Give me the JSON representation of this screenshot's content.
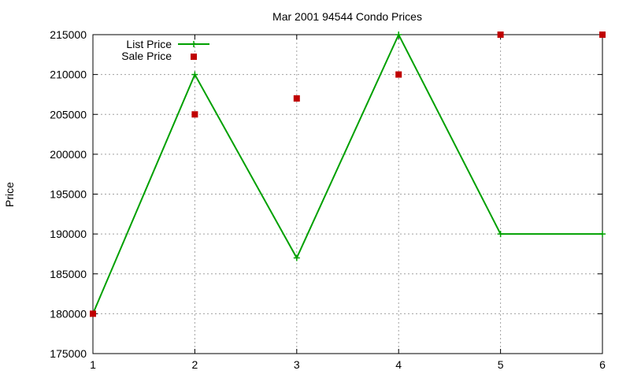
{
  "chart_data": {
    "type": "line",
    "title": "Mar 2001 94544 Condo Prices",
    "xlabel": "",
    "ylabel": "Price",
    "x": [
      1,
      2,
      3,
      4,
      5,
      6
    ],
    "xlim": [
      1,
      6
    ],
    "ylim": [
      175000,
      215000
    ],
    "xticks": [
      "1",
      "2",
      "3",
      "4",
      "5",
      "6"
    ],
    "yticks": [
      "175000",
      "180000",
      "185000",
      "190000",
      "195000",
      "200000",
      "205000",
      "210000",
      "215000"
    ],
    "grid": true,
    "legend_position": "top-left",
    "series": [
      {
        "name": "List Price",
        "style": "line+points",
        "color": "#00a000",
        "values": [
          180000,
          210000,
          187000,
          215000,
          190000,
          190000
        ]
      },
      {
        "name": "Sale Price",
        "style": "points",
        "color": "#c00000",
        "values": [
          180000,
          205000,
          207000,
          210000,
          215000,
          215000
        ]
      }
    ]
  }
}
